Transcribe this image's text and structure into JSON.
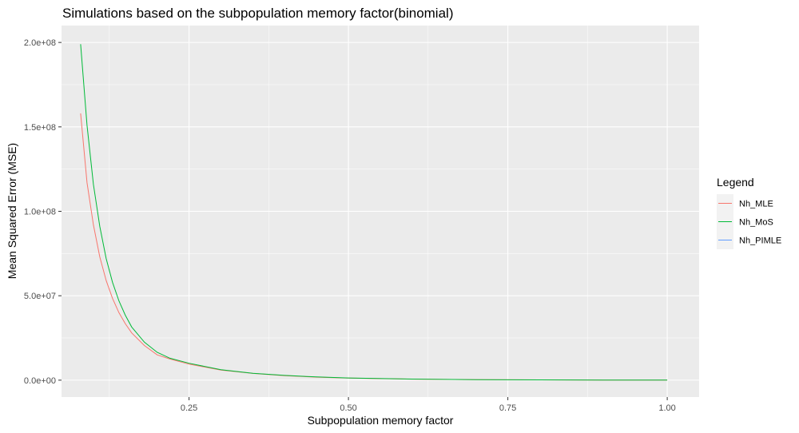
{
  "chart_data": {
    "type": "line",
    "title": "Simulations based on the subpopulation memory factor(binomial)",
    "xlabel": "Subpopulation memory factor",
    "ylabel": "Mean Squared Error (MSE)",
    "xlim": [
      0.05,
      1.05
    ],
    "ylim": [
      -10000000,
      210000000
    ],
    "x_ticks": [
      0.25,
      0.5,
      0.75,
      1.0
    ],
    "x_tick_labels": [
      "0.25",
      "0.50",
      "0.75",
      "1.00"
    ],
    "y_ticks": [
      0,
      50000000,
      100000000,
      150000000,
      200000000
    ],
    "y_tick_labels": [
      "0.0e+00",
      "5.0e+07",
      "1.0e+08",
      "1.5e+08",
      "2.0e+08"
    ],
    "grid": true,
    "legend_title": "Legend",
    "legend_position": "right",
    "series": [
      {
        "name": "Nh_MLE",
        "color": "#F8766D",
        "x": [
          0.08,
          0.09,
          0.1,
          0.11,
          0.12,
          0.13,
          0.14,
          0.15,
          0.16,
          0.18,
          0.2,
          0.22,
          0.25,
          0.3,
          0.35,
          0.4,
          0.45,
          0.5,
          0.6,
          0.7,
          0.8,
          0.9,
          1.0
        ],
        "y": [
          158000000,
          117000000,
          92000000,
          73000000,
          59000000,
          48500000,
          40000000,
          33500000,
          28000000,
          20500000,
          15000000,
          12500000,
          9500000,
          6000000,
          4000000,
          2700000,
          1800000,
          1200000,
          600000,
          300000,
          150000,
          70000,
          30000
        ]
      },
      {
        "name": "Nh_MoS",
        "color": "#00BA38",
        "x": [
          0.08,
          0.09,
          0.1,
          0.11,
          0.12,
          0.13,
          0.14,
          0.15,
          0.16,
          0.18,
          0.2,
          0.22,
          0.25,
          0.3,
          0.35,
          0.4,
          0.45,
          0.5,
          0.6,
          0.7,
          0.8,
          0.9,
          1.0
        ],
        "y": [
          199000000,
          151000000,
          116000000,
          91000000,
          72000000,
          58000000,
          47000000,
          38500000,
          31500000,
          22500000,
          16500000,
          13000000,
          10000000,
          6200000,
          4100000,
          2800000,
          1900000,
          1300000,
          650000,
          320000,
          160000,
          75000,
          30000
        ]
      },
      {
        "name": "Nh_PIMLE",
        "color": "#619CFF",
        "x": [],
        "y": []
      }
    ]
  }
}
